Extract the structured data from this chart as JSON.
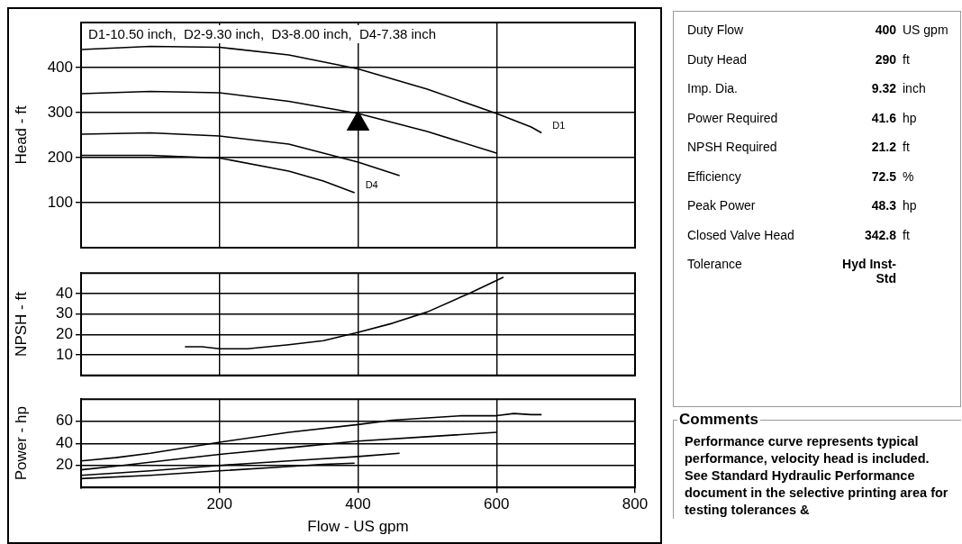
{
  "chart_data": [
    {
      "type": "line",
      "ylabel": "Head - ft",
      "xlim": [
        0,
        800
      ],
      "xticks": [
        200,
        400,
        600,
        800
      ],
      "ylim": [
        0,
        500
      ],
      "yticks": [
        100,
        200,
        300,
        400
      ],
      "grid": true,
      "tick_labels": "y",
      "annotations": [
        "D1-10.50 inch,  D2-9.30 inch,  D3-8.00 inch,  D4-7.38 inch",
        {
          "text": "D1",
          "x": 665,
          "y": 255
        },
        {
          "text": "D4",
          "x": 395,
          "y": 122
        }
      ],
      "series": [
        {
          "color": "#000000",
          "x": [
            0,
            100,
            200,
            300,
            400,
            500,
            600,
            650,
            665
          ],
          "values": [
            440,
            447,
            445,
            428,
            397,
            352,
            298,
            268,
            255
          ]
        },
        {
          "color": "#000000",
          "x": [
            0,
            100,
            200,
            300,
            400,
            500,
            600
          ],
          "values": [
            342,
            347,
            344,
            325,
            298,
            258,
            210
          ]
        },
        {
          "color": "#000000",
          "x": [
            0,
            100,
            200,
            300,
            400,
            460
          ],
          "values": [
            252,
            255,
            248,
            230,
            190,
            160
          ]
        },
        {
          "color": "#000000",
          "x": [
            0,
            100,
            200,
            300,
            350,
            395
          ],
          "values": [
            205,
            205,
            199,
            170,
            148,
            122
          ]
        },
        {
          "type": "scatter",
          "marker": "triangle",
          "color": "#000000",
          "x": [
            400
          ],
          "values": [
            275
          ]
        }
      ]
    },
    {
      "type": "line",
      "ylabel": "NPSH - ft",
      "xlim": [
        0,
        800
      ],
      "xticks": [
        200,
        400,
        600,
        800
      ],
      "ylim": [
        0,
        50
      ],
      "yticks": [
        10,
        20,
        30,
        40
      ],
      "grid": true,
      "tick_labels": "y",
      "series": [
        {
          "color": "#000000",
          "x": [
            150,
            175,
            200,
            240,
            300,
            350,
            400,
            450,
            500,
            550,
            560,
            610
          ],
          "values": [
            14,
            14,
            13,
            13,
            15,
            17,
            21,
            25.5,
            31,
            38.5,
            40,
            48
          ]
        }
      ]
    },
    {
      "type": "line",
      "ylabel": "Power - hp",
      "xlabel": "Flow - US gpm",
      "xlim": [
        0,
        800
      ],
      "xticks": [
        200,
        400,
        600,
        800
      ],
      "ylim": [
        0,
        80
      ],
      "yticks": [
        20,
        40,
        60
      ],
      "grid": true,
      "series": [
        {
          "color": "#000000",
          "x": [
            0,
            50,
            100,
            200,
            300,
            400,
            450,
            550,
            600,
            625,
            650,
            665
          ],
          "values": [
            24,
            27,
            31,
            41,
            50,
            57,
            61,
            65,
            65,
            67,
            66,
            66
          ]
        },
        {
          "color": "#000000",
          "x": [
            0,
            60,
            130,
            200,
            300,
            400,
            500,
            600
          ],
          "values": [
            16,
            20,
            25,
            30,
            36,
            42,
            46,
            50
          ]
        },
        {
          "color": "#000000",
          "x": [
            0,
            100,
            200,
            250,
            300,
            400,
            460
          ],
          "values": [
            11,
            15,
            20,
            22,
            24,
            28,
            31
          ]
        },
        {
          "color": "#000000",
          "x": [
            0,
            100,
            200,
            300,
            350,
            395
          ],
          "values": [
            8,
            11,
            15,
            19,
            21,
            22
          ]
        }
      ]
    },
    {
      "type": "other",
      "annotations": [
        "Duty Flow",
        "400 US gpm",
        "Duty Head",
        "290 ft",
        "Imp. Dia.",
        "9.32 inch",
        "Power Required",
        "41.6 hp",
        "NPSH Required",
        "21.2 ft",
        "Efficiency",
        "72.5 %",
        "Peak Power",
        "48.3 hp",
        "Closed Valve Head",
        "342.8 ft",
        "Tolerance",
        "Hyd Inst-Std"
      ]
    },
    {
      "type": "other",
      "title": "Comments",
      "annotations": [
        "Performance curve represents typical performance, velocity head is included. See Standard Hydraulic Performance document in the selective printing area for testing tolerances &"
      ]
    }
  ]
}
